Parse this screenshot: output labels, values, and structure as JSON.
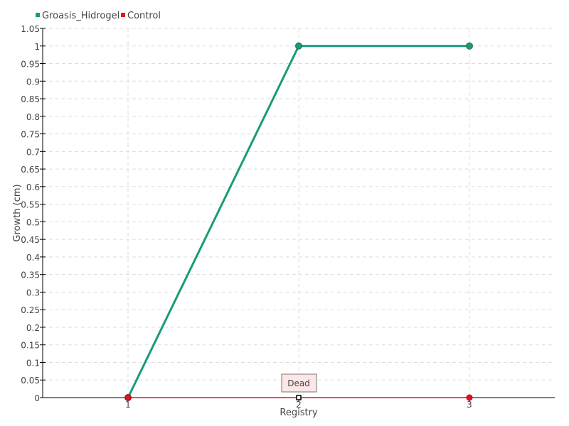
{
  "chart_data": {
    "type": "line",
    "title": "",
    "xlabel": "Registry",
    "ylabel": "Growth (cm)",
    "categories": [
      "1",
      "2",
      "3"
    ],
    "x": [
      1,
      2,
      3
    ],
    "xlim": [
      0.5,
      3.5
    ],
    "ylim": [
      0,
      1.05
    ],
    "yticks": [
      "0",
      "0.05",
      "0.1",
      "0.15",
      "0.2",
      "0.25",
      "0.3",
      "0.35",
      "0.4",
      "0.45",
      "0.5",
      "0.55",
      "0.6",
      "0.65",
      "0.7",
      "0.75",
      "0.8",
      "0.85",
      "0.9",
      "0.95",
      "1",
      "1.05"
    ],
    "grid": true,
    "legend_position": "top-left",
    "series": [
      {
        "name": "Groasis_Hidrogel",
        "color": "#1a9a7a",
        "values": [
          0,
          1,
          1
        ]
      },
      {
        "name": "Control",
        "color": "#e8101e",
        "values": [
          0,
          0,
          0
        ]
      }
    ],
    "annotations": [
      {
        "text": "Dead",
        "series": "Control",
        "x": 2,
        "y": 0
      }
    ]
  }
}
